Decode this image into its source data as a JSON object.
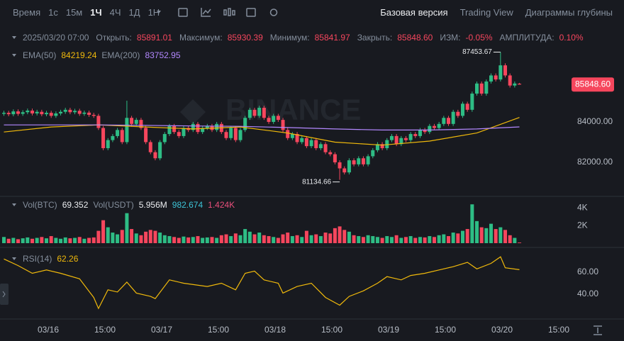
{
  "toolbar": {
    "intervals": [
      "Время",
      "1с",
      "15м",
      "1Ч",
      "4Ч",
      "1Д",
      "1Н"
    ],
    "views": [
      "Базовая версия",
      "Trading View",
      "Диаграммы глубины"
    ]
  },
  "legend": {
    "date": "2025/03/20 07:00",
    "open_label": "Открыть:",
    "high_label": "Максимум:",
    "low_label": "Минимум:",
    "close_label": "Закрыть:",
    "change_label": "ИЗМ:",
    "change": "-0.05%",
    "amplitude_label": "АМПЛИТУДА:",
    "amplitude": "0.10%"
  },
  "watermark": "BINANCE",
  "x_labels": [
    "03/16",
    "15:00",
    "03/17",
    "15:00",
    "03/18",
    "15:00",
    "03/19",
    "15:00",
    "03/20",
    "15:00"
  ],
  "chart_data": [
    {
      "type": "candlestick",
      "up_color": "#2ebd85",
      "down_color": "#f6465d",
      "open": [
        84400,
        84450,
        84380,
        84520,
        84400,
        84480,
        84560,
        84420,
        84500,
        84380,
        84450,
        84300,
        84420,
        84500,
        84600,
        84480,
        84550,
        84400,
        84460,
        84350,
        84300,
        83700,
        82700,
        83100,
        83300,
        83600,
        83000,
        84200,
        83900,
        84100,
        83700,
        83000,
        82500,
        82200,
        83000,
        83400,
        83800,
        83500,
        83300,
        83700,
        83600,
        83900,
        83500,
        83700,
        83800,
        83600,
        83900,
        83500,
        83200,
        83700,
        83100,
        83600,
        84200,
        84600,
        84300,
        84700,
        84200,
        84000,
        84300,
        84100,
        83600,
        83200,
        83400,
        83000,
        83200,
        82800,
        83100,
        82700,
        82900,
        82500,
        82400,
        82000,
        81700,
        81500,
        82100,
        81900,
        82200,
        81900,
        82300,
        82600,
        82900,
        82700,
        83100,
        83300,
        82900,
        83200,
        83100,
        83400,
        83300,
        83600,
        83500,
        83800,
        83700,
        83900,
        84200,
        83900,
        84500,
        84300,
        84900,
        84600,
        85400,
        85900,
        85400,
        86000,
        86300,
        86100,
        86800,
        86300,
        85800,
        85891.01
      ],
      "high": [
        84550,
        84550,
        84620,
        84620,
        84580,
        84660,
        84660,
        84600,
        84600,
        84550,
        84550,
        84520,
        84600,
        84700,
        84700,
        84650,
        84650,
        84560,
        84560,
        84450,
        84400,
        83800,
        83200,
        83400,
        83700,
        83700,
        85050,
        84300,
        84200,
        84200,
        83800,
        83100,
        82600,
        83100,
        83500,
        83900,
        83900,
        83600,
        83800,
        83800,
        84000,
        84000,
        83800,
        83900,
        83900,
        84000,
        84000,
        83600,
        83800,
        83800,
        83700,
        84300,
        84700,
        84700,
        84800,
        84800,
        84300,
        84400,
        84400,
        84200,
        83700,
        83500,
        83500,
        83300,
        83300,
        83200,
        83200,
        83000,
        83000,
        82600,
        82500,
        82100,
        81800,
        82200,
        82200,
        82300,
        82300,
        82400,
        82700,
        83000,
        83000,
        83200,
        83400,
        83400,
        83300,
        83300,
        83500,
        83500,
        83700,
        83700,
        83900,
        83900,
        84000,
        84300,
        84300,
        84600,
        84600,
        85000,
        85000,
        85500,
        86000,
        86000,
        86100,
        86400,
        86400,
        87453.67,
        86900,
        86400,
        86000,
        85930.39
      ],
      "low": [
        84300,
        84280,
        84280,
        84300,
        84300,
        84380,
        84320,
        84320,
        84280,
        84280,
        84200,
        84200,
        84320,
        84400,
        84380,
        84380,
        84300,
        84300,
        84250,
        84200,
        83600,
        82600,
        82600,
        83000,
        83200,
        82900,
        82900,
        83800,
        83800,
        83600,
        82900,
        82400,
        82100,
        82100,
        82900,
        83300,
        83400,
        83200,
        83200,
        83500,
        83500,
        83400,
        83400,
        83600,
        83500,
        83500,
        83400,
        83100,
        83100,
        83000,
        83000,
        83500,
        84100,
        84200,
        84200,
        84100,
        83900,
        83900,
        84000,
        83500,
        83100,
        83100,
        82900,
        82900,
        82700,
        82700,
        82600,
        82600,
        82400,
        82300,
        81900,
        81134.66,
        81400,
        81400,
        81800,
        81800,
        81800,
        81800,
        82200,
        82500,
        82600,
        82600,
        83000,
        82800,
        82800,
        83000,
        83000,
        83200,
        83200,
        83400,
        83400,
        83600,
        83600,
        83800,
        83800,
        83800,
        84200,
        84200,
        84500,
        84500,
        85300,
        85300,
        85300,
        85900,
        86000,
        86000,
        86200,
        85700,
        85700,
        85841.97
      ],
      "close": [
        84450,
        84380,
        84520,
        84400,
        84480,
        84560,
        84420,
        84500,
        84380,
        84450,
        84300,
        84420,
        84500,
        84600,
        84480,
        84550,
        84400,
        84460,
        84350,
        84300,
        83700,
        82700,
        83100,
        83300,
        83600,
        83000,
        84200,
        83900,
        84100,
        83700,
        83000,
        82500,
        82200,
        83000,
        83400,
        83800,
        83500,
        83300,
        83700,
        83600,
        83900,
        83500,
        83700,
        83800,
        83600,
        83900,
        83500,
        83200,
        83700,
        83100,
        83600,
        84200,
        84600,
        84300,
        84700,
        84200,
        84000,
        84300,
        84100,
        83600,
        83200,
        83400,
        83000,
        83200,
        82800,
        83100,
        82700,
        82900,
        82500,
        82400,
        82000,
        81700,
        81500,
        82100,
        81900,
        82200,
        81900,
        82300,
        82600,
        82900,
        82700,
        83100,
        83300,
        82900,
        83200,
        83100,
        83400,
        83300,
        83600,
        83500,
        83800,
        83700,
        83900,
        84200,
        83900,
        84500,
        84300,
        84900,
        84600,
        85400,
        85900,
        85400,
        86000,
        86300,
        86100,
        86800,
        86300,
        85800,
        85900,
        85848.6
      ],
      "last_price_label": "85848.60",
      "ylim": [
        80490,
        88630
      ],
      "yticks": [
        {
          "value": 82000,
          "label": "82000.00"
        },
        {
          "value": 84000,
          "label": "84000.00"
        }
      ],
      "lines": [
        {
          "name": "EMA(50)",
          "color": "#f0b90b",
          "x": [
            0,
            10,
            20,
            30,
            40,
            50,
            60,
            70,
            80,
            90,
            100,
            109
          ],
          "values": [
            83500,
            83750,
            83850,
            83750,
            83650,
            83750,
            83450,
            83000,
            82850,
            83050,
            83450,
            84219.24
          ]
        },
        {
          "name": "EMA(200)",
          "color": "#b388ff",
          "x": [
            0,
            10,
            20,
            30,
            40,
            50,
            60,
            70,
            80,
            90,
            100,
            109
          ],
          "values": [
            83850,
            83850,
            83850,
            83830,
            83800,
            83780,
            83720,
            83650,
            83600,
            83600,
            83650,
            83752.95
          ]
        }
      ]
    },
    {
      "type": "bar",
      "name": "Vol(BTC)",
      "values": [
        700,
        500,
        600,
        450,
        550,
        650,
        500,
        600,
        700,
        550,
        800,
        600,
        500,
        650,
        550,
        600,
        700,
        500,
        600,
        650,
        1400,
        2600,
        1800,
        1200,
        1000,
        1500,
        3400,
        1600,
        1100,
        900,
        1300,
        1500,
        1400,
        1200,
        900,
        800,
        700,
        600,
        750,
        650,
        700,
        800,
        600,
        650,
        700,
        600,
        900,
        1000,
        800,
        1100,
        900,
        1600,
        1300,
        1000,
        1200,
        900,
        800,
        700,
        600,
        1000,
        1200,
        800,
        900,
        700,
        1400,
        900,
        1000,
        800,
        1200,
        1100,
        1700,
        1900,
        1500,
        1300,
        900,
        800,
        700,
        900,
        800,
        700,
        600,
        800,
        700,
        900,
        600,
        700,
        800,
        600,
        700,
        650,
        800,
        700,
        900,
        1000,
        800,
        1200,
        1100,
        1400,
        1600,
        4400,
        2500,
        1800,
        1700,
        2200,
        1600,
        1800,
        1500,
        900,
        600,
        69.352
      ],
      "extra_labels": [
        "Vol(USDT)",
        "5.956M",
        "982.674",
        "1.424K"
      ],
      "ylim": [
        0,
        4900
      ],
      "yticks": [
        {
          "value": 2000,
          "label": "2K"
        },
        {
          "value": 4000,
          "label": "4K"
        }
      ]
    },
    {
      "type": "line",
      "name": "RSI(14)",
      "color": "#f0b90b",
      "x": [
        0,
        3,
        6,
        9,
        12,
        16,
        19,
        20,
        22,
        24,
        26,
        28,
        31,
        32,
        35,
        38,
        43,
        46,
        49,
        51,
        53,
        55,
        58,
        59,
        62,
        65,
        68,
        71,
        73,
        76,
        79,
        81,
        84,
        86,
        89,
        92,
        95,
        98,
        100,
        103,
        105,
        106,
        109
      ],
      "values": [
        72,
        66,
        59,
        62,
        59,
        54,
        37,
        27,
        44,
        42,
        51,
        41,
        38,
        36,
        53,
        50,
        47,
        50,
        44,
        59,
        61,
        53,
        50,
        41,
        47,
        50,
        37,
        30,
        38,
        43,
        50,
        56,
        53,
        57,
        59,
        62,
        65,
        69,
        63,
        68,
        74,
        64,
        62.26
      ],
      "ylim": [
        18.7,
        80.6
      ],
      "yticks": [
        {
          "value": 40,
          "label": "40.00"
        },
        {
          "value": 60,
          "label": "60.00"
        }
      ]
    }
  ]
}
